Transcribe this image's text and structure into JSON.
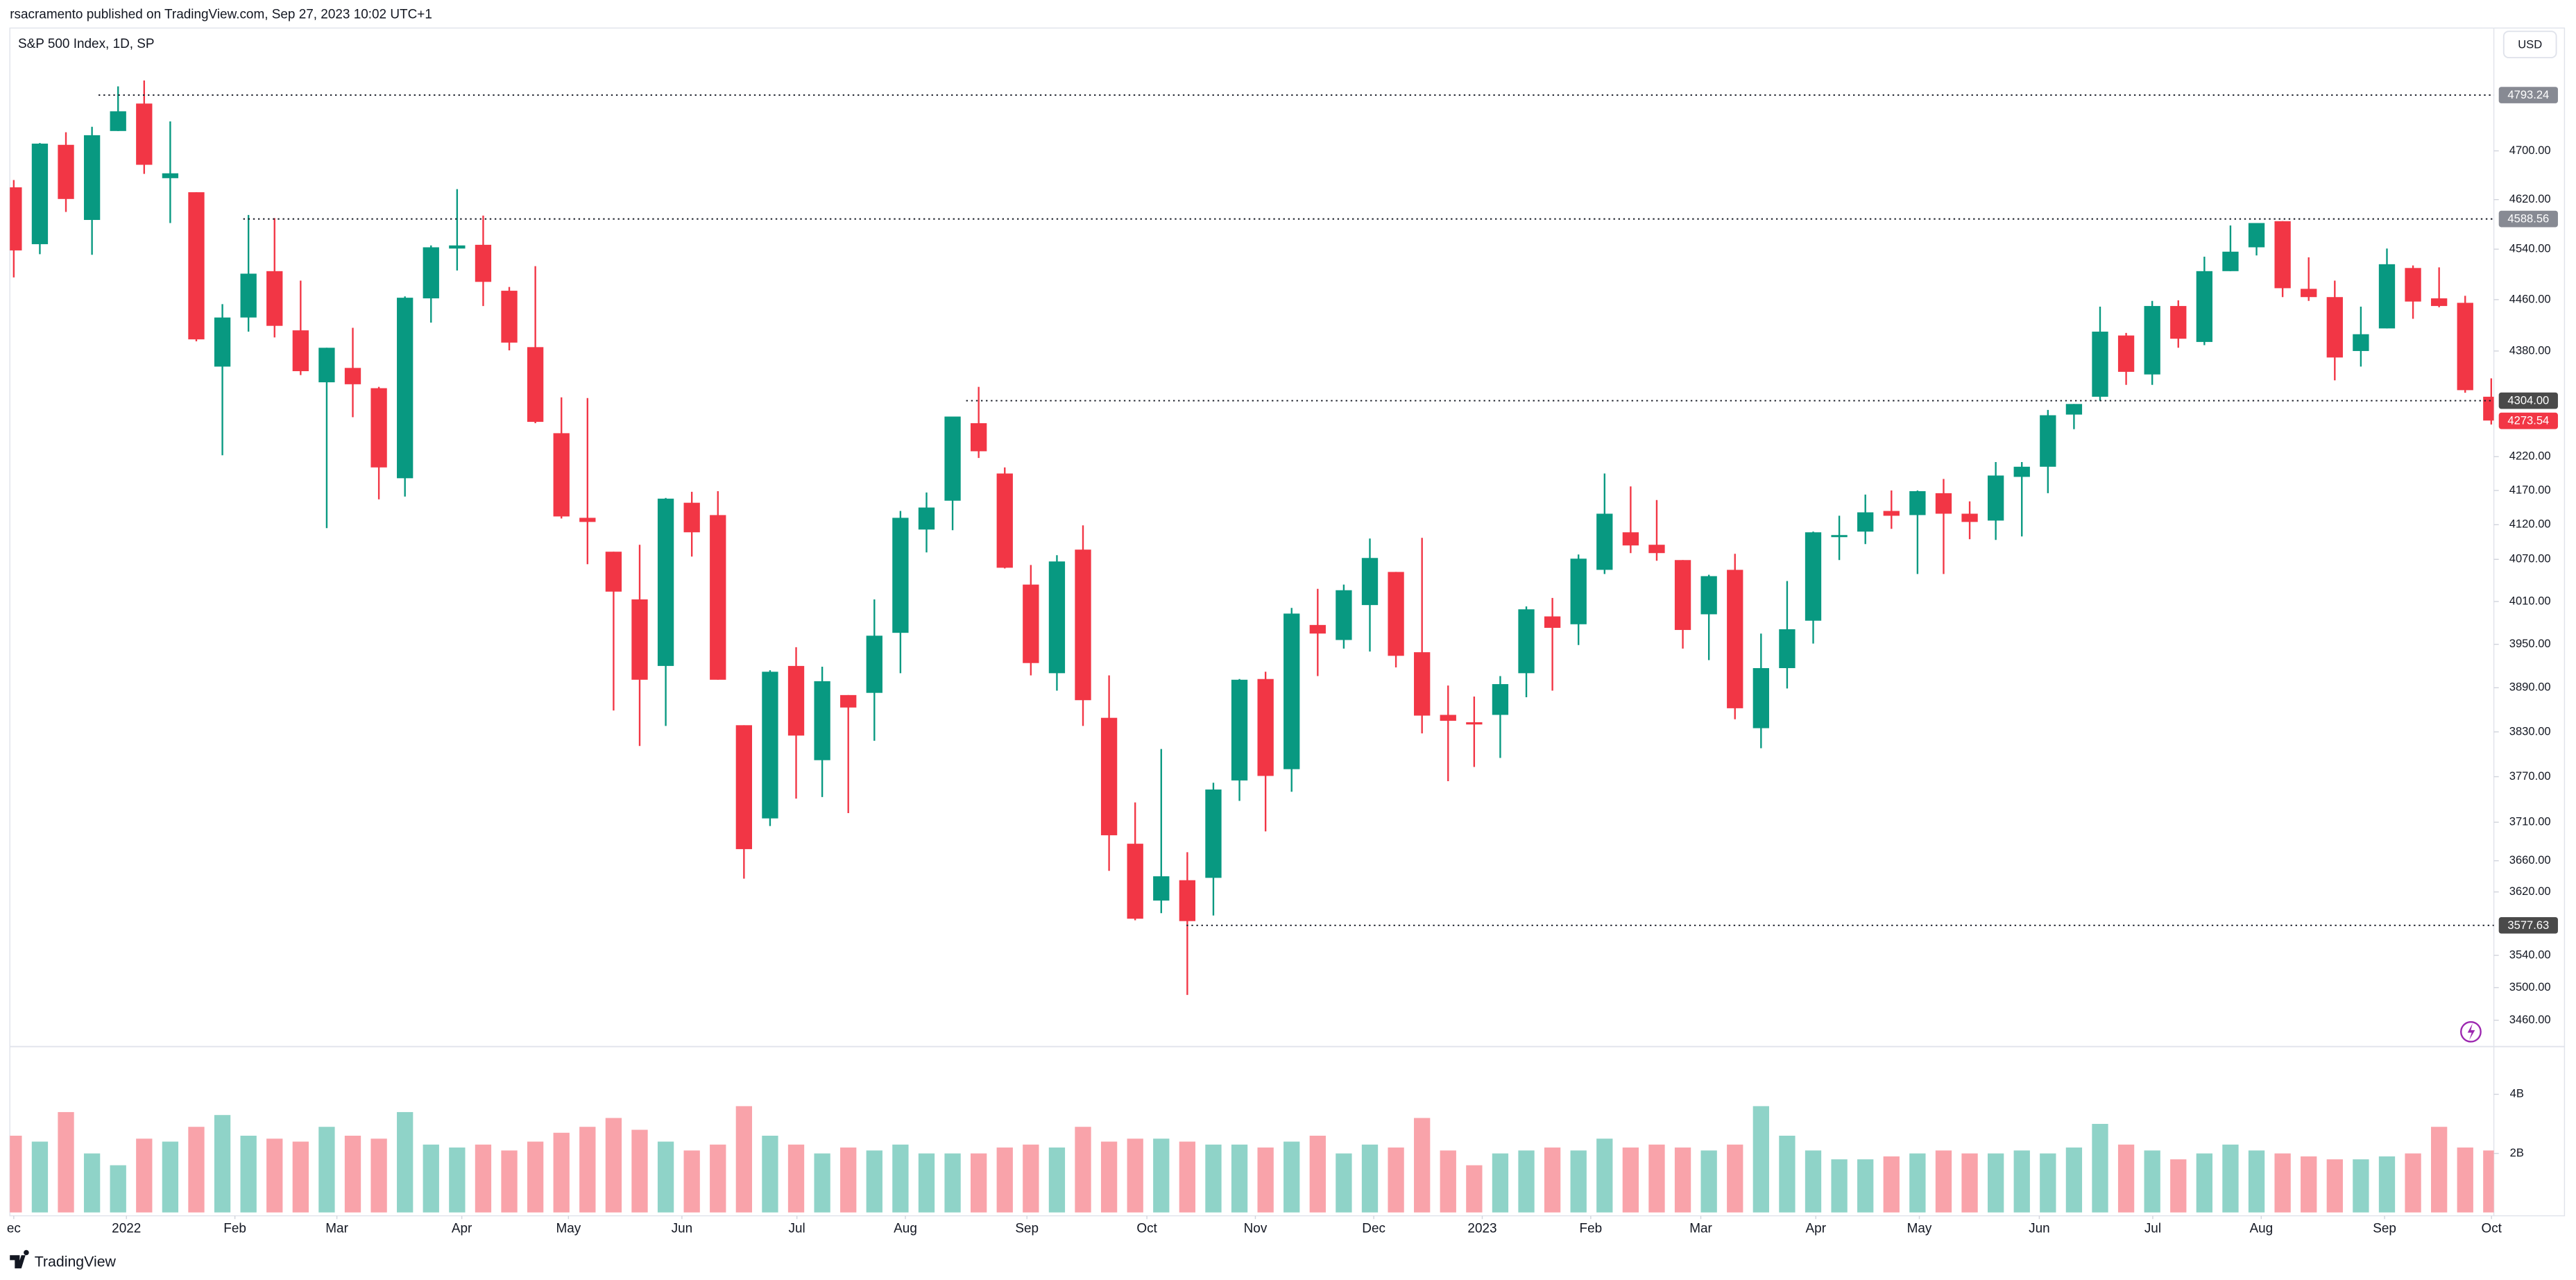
{
  "header": {
    "published": "rsacramento published on TradingView.com, Sep 27, 2023 10:02 UTC+1",
    "symbol": "S&P 500 Index, 1D, SP",
    "currency": "USD",
    "brand": "TradingView"
  },
  "chart_data": {
    "type": "candlestick",
    "log_scale": true,
    "grid": false,
    "up_color": "#089981",
    "down_color": "#f23645",
    "volume_up_color": "#8fd3c8",
    "volume_down_color": "#f9a3aa",
    "xlim": [
      -0.15,
      95.1
    ],
    "xticks": [
      {
        "value": 0,
        "label": "ec"
      },
      {
        "value": 4.32,
        "label": "2022"
      },
      {
        "value": 8.48,
        "label": "Feb"
      },
      {
        "value": 12.39,
        "label": "Mar"
      },
      {
        "value": 17.18,
        "label": "Apr"
      },
      {
        "value": 21.27,
        "label": "May"
      },
      {
        "value": 25.62,
        "label": "Jun"
      },
      {
        "value": 30.03,
        "label": "Jul"
      },
      {
        "value": 34.19,
        "label": "Aug"
      },
      {
        "value": 38.85,
        "label": "Sep"
      },
      {
        "value": 43.45,
        "label": "Oct"
      },
      {
        "value": 47.61,
        "label": "Nov"
      },
      {
        "value": 52.15,
        "label": "Dec"
      },
      {
        "value": 56.31,
        "label": "2023"
      },
      {
        "value": 60.47,
        "label": "Feb"
      },
      {
        "value": 64.69,
        "label": "Mar"
      },
      {
        "value": 69.1,
        "label": "Apr"
      },
      {
        "value": 73.07,
        "label": "May"
      },
      {
        "value": 77.67,
        "label": "Jun"
      },
      {
        "value": 82.02,
        "label": "Jul"
      },
      {
        "value": 86.18,
        "label": "Aug"
      },
      {
        "value": 90.91,
        "label": "Sep"
      },
      {
        "value": 95.01,
        "label": "Oct"
      }
    ],
    "ylim": [
      3430,
      4905
    ],
    "yticks": [
      {
        "value": 3460,
        "label": "3460.00"
      },
      {
        "value": 3500,
        "label": "3500.00"
      },
      {
        "value": 3540,
        "label": "3540.00"
      },
      {
        "value": 3620,
        "label": "3620.00"
      },
      {
        "value": 3660,
        "label": "3660.00"
      },
      {
        "value": 3710,
        "label": "3710.00"
      },
      {
        "value": 3770,
        "label": "3770.00"
      },
      {
        "value": 3830,
        "label": "3830.00"
      },
      {
        "value": 3890,
        "label": "3890.00"
      },
      {
        "value": 3950,
        "label": "3950.00"
      },
      {
        "value": 4010,
        "label": "4010.00"
      },
      {
        "value": 4070,
        "label": "4070.00"
      },
      {
        "value": 4120,
        "label": "4120.00"
      },
      {
        "value": 4170,
        "label": "4170.00"
      },
      {
        "value": 4220,
        "label": "4220.00"
      },
      {
        "value": 4380,
        "label": "4380.00"
      },
      {
        "value": 4460,
        "label": "4460.00"
      },
      {
        "value": 4540,
        "label": "4540.00"
      },
      {
        "value": 4620,
        "label": "4620.00"
      },
      {
        "value": 4700,
        "label": "4700.00"
      }
    ],
    "levels": [
      {
        "value": 4793.24,
        "label": "4793.24",
        "x": 3.25,
        "color": "#878a93"
      },
      {
        "value": 4588.56,
        "label": "4588.56",
        "x": 8.8,
        "color": "#878a93"
      },
      {
        "value": 4304.0,
        "label": "4304.00",
        "x": 36.52,
        "color": "#4a4a4a"
      },
      {
        "value": 3577.63,
        "label": "3577.63",
        "x": 44.97,
        "color": "#4a4a4a"
      }
    ],
    "last_price": {
      "value": 4273.54,
      "label": "4273.54",
      "color": "#f23645"
    },
    "open": [
      4640,
      4548,
      4710,
      4587,
      4733,
      4779,
      4655,
      4632,
      4356,
      4432,
      4505,
      4412,
      4332,
      4354,
      4323,
      4188,
      4462,
      4541,
      4547,
      4474,
      4386,
      4255,
      4130,
      4081,
      4013,
      3920,
      4152,
      4134,
      3839,
      3715,
      3920,
      3792,
      3880,
      3883,
      3966,
      4113,
      4155,
      4270,
      4195,
      4034,
      3910,
      4084,
      3849,
      3682,
      3609,
      3635,
      3638,
      3765,
      3902,
      3780,
      3977,
      3956,
      4005,
      4052,
      3939,
      3853,
      3843,
      3853,
      3910,
      3989,
      3978,
      4055,
      4109,
      4091,
      4069,
      3992,
      4055,
      3835,
      3917,
      3983,
      4102,
      4110,
      4140,
      4134,
      4166,
      4136,
      4126,
      4190,
      4205,
      4283,
      4310,
      4404,
      4344,
      4450,
      4394,
      4505,
      4543,
      4585,
      4477,
      4464,
      4380,
      4415,
      4510,
      4462,
      4455,
      4310
    ],
    "high": [
      4652,
      4713,
      4731,
      4740,
      4808,
      4818,
      4749,
      4632,
      4453,
      4595,
      4590,
      4490,
      4385,
      4416,
      4325,
      4465,
      4546,
      4637,
      4594,
      4480,
      4513,
      4309,
      4308,
      4081,
      4091,
      4159,
      4168,
      4169,
      3839,
      3914,
      3946,
      3919,
      3880,
      4013,
      4140,
      4167,
      4280,
      4325,
      4204,
      4062,
      4076,
      4119,
      3907,
      3736,
      3807,
      3671,
      3762,
      3902,
      3912,
      4001,
      4028,
      4034,
      4100,
      4052,
      4101,
      3893,
      3878,
      3906,
      4003,
      4015,
      4077,
      4195,
      4176,
      4156,
      4069,
      4048,
      4078,
      3965,
      4039,
      4110,
      4133,
      4164,
      4170,
      4170,
      4187,
      4154,
      4212,
      4212,
      4290,
      4299,
      4449,
      4408,
      4458,
      4459,
      4528,
      4578,
      4582,
      4585,
      4527,
      4490,
      4449,
      4541,
      4514,
      4511,
      4466,
      4338
    ],
    "low": [
      4495,
      4532,
      4600,
      4531,
      4733,
      4662,
      4582,
      4395,
      4222,
      4410,
      4401,
      4343,
      4115,
      4279,
      4157,
      4161,
      4424,
      4506,
      4450,
      4381,
      4270,
      4129,
      4063,
      3859,
      3811,
      3838,
      4074,
      3901,
      3637,
      3705,
      3741,
      3743,
      3722,
      3818,
      3910,
      4080,
      4112,
      4218,
      4057,
      3907,
      3886,
      3838,
      3647,
      3584,
      3593,
      3491,
      3590,
      3738,
      3698,
      3750,
      3906,
      3944,
      3940,
      3918,
      3828,
      3764,
      3783,
      3795,
      3877,
      3886,
      3949,
      4049,
      4079,
      4068,
      3944,
      3928,
      3847,
      3808,
      3889,
      3951,
      4069,
      4092,
      4114,
      4049,
      4049,
      4099,
      4098,
      4103,
      4166,
      4261,
      4304,
      4328,
      4328,
      4385,
      4389,
      4505,
      4530,
      4464,
      4458,
      4335,
      4356,
      4415,
      4430,
      4448,
      4316,
      4268
    ],
    "close": [
      4538,
      4712,
      4621,
      4726,
      4766,
      4677,
      4663,
      4398,
      4432,
      4501,
      4419,
      4349,
      4385,
      4329,
      4204,
      4463,
      4543,
      4546,
      4488,
      4393,
      4272,
      4132,
      4124,
      4024,
      3901,
      4158,
      4109,
      3901,
      3675,
      3912,
      3825,
      3899,
      3863,
      3962,
      4130,
      4145,
      4280,
      4228,
      4058,
      3924,
      4067,
      3873,
      3693,
      3586,
      3640,
      3583,
      3753,
      3901,
      3771,
      3993,
      3965,
      4026,
      4072,
      3934,
      3852,
      3845,
      3840,
      3895,
      3999,
      3973,
      4071,
      4136,
      4090,
      4079,
      3970,
      4046,
      3862,
      3917,
      3971,
      4109,
      4105,
      4138,
      4133,
      4169,
      4136,
      4124,
      4192,
      4205,
      4282,
      4299,
      4410,
      4348,
      4450,
      4399,
      4505,
      4536,
      4582,
      4478,
      4464,
      4370,
      4406,
      4516,
      4457,
      4450,
      4320,
      4274
    ],
    "volume": {
      "ylim": [
        0,
        5.56
      ],
      "yticks": [
        {
          "value": 2,
          "label": "2B"
        },
        {
          "value": 4,
          "label": "4B"
        }
      ],
      "values": [
        2.6,
        2.4,
        3.4,
        2.0,
        1.6,
        2.5,
        2.4,
        2.9,
        3.3,
        2.6,
        2.5,
        2.4,
        2.9,
        2.6,
        2.5,
        3.4,
        2.3,
        2.2,
        2.3,
        2.1,
        2.4,
        2.7,
        2.9,
        3.2,
        2.8,
        2.4,
        2.1,
        2.3,
        3.6,
        2.6,
        2.3,
        2.0,
        2.2,
        2.1,
        2.3,
        2.0,
        2.0,
        2.0,
        2.2,
        2.3,
        2.2,
        2.9,
        2.4,
        2.5,
        2.5,
        2.4,
        2.3,
        2.3,
        2.2,
        2.4,
        2.6,
        2.0,
        2.3,
        2.2,
        3.2,
        2.1,
        1.6,
        2.0,
        2.1,
        2.2,
        2.1,
        2.5,
        2.2,
        2.3,
        2.2,
        2.1,
        2.3,
        3.6,
        2.6,
        2.1,
        1.8,
        1.8,
        1.9,
        2.0,
        2.1,
        2.0,
        2.0,
        2.1,
        2.0,
        2.2,
        3.0,
        2.3,
        2.1,
        1.8,
        2.0,
        2.3,
        2.1,
        2.0,
        1.9,
        1.8,
        1.8,
        1.9,
        2.0,
        2.9,
        2.2,
        2.1
      ]
    }
  }
}
